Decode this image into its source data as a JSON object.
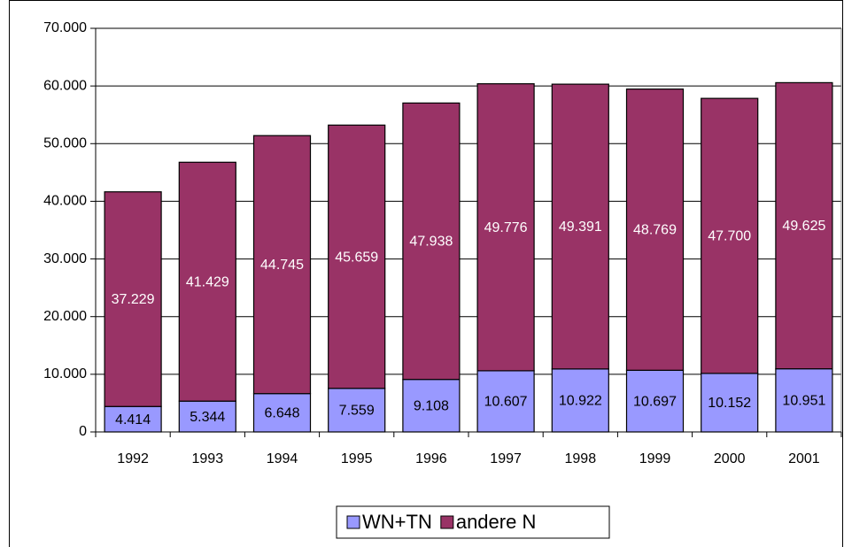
{
  "chart_data": {
    "type": "stacked_bar",
    "categories": [
      "1992",
      "1993",
      "1994",
      "1995",
      "1996",
      "1997",
      "1998",
      "1999",
      "2000",
      "2001"
    ],
    "series": [
      {
        "name": "WN+TN",
        "color": "#9999ff",
        "values": [
          4414,
          5344,
          6648,
          7559,
          9108,
          10607,
          10922,
          10697,
          10152,
          10951
        ],
        "value_labels": [
          "4.414",
          "5.344",
          "6.648",
          "7.559",
          "9.108",
          "10.607",
          "10.922",
          "10.697",
          "10.152",
          "10.951"
        ]
      },
      {
        "name": "andere N",
        "color": "#993366",
        "values": [
          37229,
          41429,
          44745,
          45659,
          47938,
          49776,
          49391,
          48769,
          47700,
          49625
        ],
        "value_labels": [
          "37.229",
          "41.429",
          "44.745",
          "45.659",
          "47.938",
          "49.776",
          "49.391",
          "48.769",
          "47.700",
          "49.625"
        ]
      }
    ],
    "ylim": [
      0,
      70000
    ],
    "yticks": [
      0,
      {
        "value": 10000,
        "label": "10.000"
      },
      {
        "value": 20000,
        "label": "20.000"
      },
      {
        "value": 30000,
        "label": "30.000"
      },
      {
        "value": 40000,
        "label": "40.000"
      },
      {
        "value": 50000,
        "label": "50.000"
      },
      {
        "value": 60000,
        "label": "60.000"
      },
      {
        "value": 70000,
        "label": "70.000"
      }
    ],
    "grid": true,
    "legend": "bottom"
  }
}
